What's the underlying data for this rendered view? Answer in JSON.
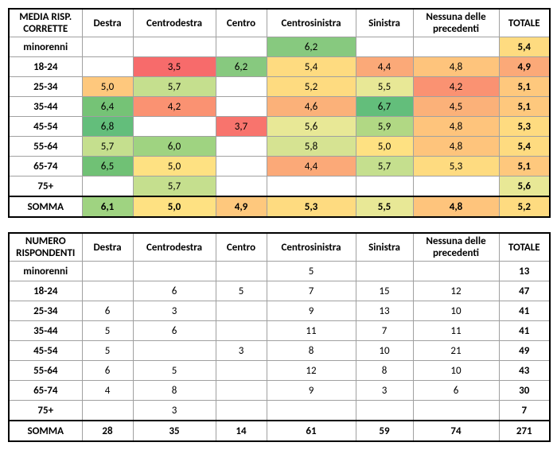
{
  "columns": [
    "Destra",
    "Centrodestra",
    "Centro",
    "Centrosinistra",
    "Sinistra",
    "Nessuna delle precedenti",
    "TOTALE"
  ],
  "table1": {
    "corner": "MEDIA RISP. CORRETTE",
    "rows": [
      {
        "label": "minorenni",
        "cells": [
          {
            "v": "",
            "bg": "#ffffff"
          },
          {
            "v": "",
            "bg": "#ffffff"
          },
          {
            "v": "",
            "bg": "#ffffff"
          },
          {
            "v": "6,2",
            "bg": "#87c97f"
          },
          {
            "v": "",
            "bg": "#ffffff"
          },
          {
            "v": "",
            "bg": "#ffffff"
          },
          {
            "v": "5,4",
            "bg": "#fedb80"
          }
        ]
      },
      {
        "label": "18-24",
        "cells": [
          {
            "v": "",
            "bg": "#ffffff"
          },
          {
            "v": "3,5",
            "bg": "#f76b6b"
          },
          {
            "v": "6,2",
            "bg": "#87c97f"
          },
          {
            "v": "5,4",
            "bg": "#fedb80"
          },
          {
            "v": "4,4",
            "bg": "#fba978"
          },
          {
            "v": "4,8",
            "bg": "#fec47c"
          },
          {
            "v": "4,9",
            "bg": "#fba978"
          }
        ]
      },
      {
        "label": "25-34",
        "cells": [
          {
            "v": "5,0",
            "bg": "#fec87d"
          },
          {
            "v": "5,7",
            "bg": "#c5df8e"
          },
          {
            "v": "",
            "bg": "#ffffff"
          },
          {
            "v": "5,2",
            "bg": "#fedb80"
          },
          {
            "v": "5,5",
            "bg": "#e8e896"
          },
          {
            "v": "4,2",
            "bg": "#fa9272"
          },
          {
            "v": "5,1",
            "bg": "#fec87d"
          }
        ]
      },
      {
        "label": "35-44",
        "cells": [
          {
            "v": "6,4",
            "bg": "#75c376"
          },
          {
            "v": "4,2",
            "bg": "#fa9272"
          },
          {
            "v": "",
            "bg": "#ffffff"
          },
          {
            "v": "4,6",
            "bg": "#fbb179"
          },
          {
            "v": "6,7",
            "bg": "#63be7b"
          },
          {
            "v": "4,5",
            "bg": "#fbb179"
          },
          {
            "v": "5,1",
            "bg": "#fec87d"
          }
        ]
      },
      {
        "label": "45-54",
        "cells": [
          {
            "v": "6,8",
            "bg": "#63be7b"
          },
          {
            "v": "",
            "bg": "#ffffff"
          },
          {
            "v": "3,7",
            "bg": "#f8746d"
          },
          {
            "v": "5,6",
            "bg": "#e8e896"
          },
          {
            "v": "5,9",
            "bg": "#b1d884"
          },
          {
            "v": "4,8",
            "bg": "#fec47c"
          },
          {
            "v": "5,3",
            "bg": "#fedb80"
          }
        ]
      },
      {
        "label": "55-64",
        "cells": [
          {
            "v": "5,7",
            "bg": "#c5df8e"
          },
          {
            "v": "6,0",
            "bg": "#9fd381"
          },
          {
            "v": "",
            "bg": "#ffffff"
          },
          {
            "v": "5,8",
            "bg": "#d6e392"
          },
          {
            "v": "5,0",
            "bg": "#fee182"
          },
          {
            "v": "4,8",
            "bg": "#fec47c"
          },
          {
            "v": "5,4",
            "bg": "#fedb80"
          }
        ]
      },
      {
        "label": "65-74",
        "cells": [
          {
            "v": "6,5",
            "bg": "#70c175"
          },
          {
            "v": "5,0",
            "bg": "#fee182"
          },
          {
            "v": "",
            "bg": "#ffffff"
          },
          {
            "v": "4,4",
            "bg": "#fba978"
          },
          {
            "v": "5,7",
            "bg": "#c5df8e"
          },
          {
            "v": "5,3",
            "bg": "#fedb80"
          },
          {
            "v": "5,1",
            "bg": "#fec87d"
          }
        ]
      },
      {
        "label": "75+",
        "cells": [
          {
            "v": "",
            "bg": "#ffffff"
          },
          {
            "v": "5,7",
            "bg": "#c5df8e"
          },
          {
            "v": "",
            "bg": "#ffffff"
          },
          {
            "v": "",
            "bg": "#ffffff"
          },
          {
            "v": "",
            "bg": "#ffffff"
          },
          {
            "v": "",
            "bg": "#ffffff"
          },
          {
            "v": "5,6",
            "bg": "#e8e896"
          }
        ]
      }
    ],
    "summary": {
      "label": "SOMMA",
      "cells": [
        {
          "v": "6,1",
          "bg": "#9fd381"
        },
        {
          "v": "5,0",
          "bg": "#fee182"
        },
        {
          "v": "4,9",
          "bg": "#fec87d"
        },
        {
          "v": "5,3",
          "bg": "#fedb80"
        },
        {
          "v": "5,5",
          "bg": "#e8e896"
        },
        {
          "v": "4,8",
          "bg": "#fec47c"
        },
        {
          "v": "5,2",
          "bg": "#fedb80"
        }
      ]
    }
  },
  "table2": {
    "corner": "NUMERO RISPONDENTI",
    "rows": [
      {
        "label": "minorenni",
        "cells": [
          {
            "v": ""
          },
          {
            "v": ""
          },
          {
            "v": ""
          },
          {
            "v": "5"
          },
          {
            "v": ""
          },
          {
            "v": ""
          },
          {
            "v": "13"
          }
        ]
      },
      {
        "label": "18-24",
        "cells": [
          {
            "v": ""
          },
          {
            "v": "6"
          },
          {
            "v": "5"
          },
          {
            "v": "7"
          },
          {
            "v": "15"
          },
          {
            "v": "12"
          },
          {
            "v": "47"
          }
        ]
      },
      {
        "label": "25-34",
        "cells": [
          {
            "v": "6"
          },
          {
            "v": "3"
          },
          {
            "v": ""
          },
          {
            "v": "9"
          },
          {
            "v": "13"
          },
          {
            "v": "10"
          },
          {
            "v": "41"
          }
        ]
      },
      {
        "label": "35-44",
        "cells": [
          {
            "v": "5"
          },
          {
            "v": "6"
          },
          {
            "v": ""
          },
          {
            "v": "11"
          },
          {
            "v": "7"
          },
          {
            "v": "11"
          },
          {
            "v": "41"
          }
        ]
      },
      {
        "label": "45-54",
        "cells": [
          {
            "v": "5"
          },
          {
            "v": ""
          },
          {
            "v": "3"
          },
          {
            "v": "8"
          },
          {
            "v": "10"
          },
          {
            "v": "21"
          },
          {
            "v": "49"
          }
        ]
      },
      {
        "label": "55-64",
        "cells": [
          {
            "v": "6"
          },
          {
            "v": "5"
          },
          {
            "v": ""
          },
          {
            "v": "12"
          },
          {
            "v": "8"
          },
          {
            "v": "10"
          },
          {
            "v": "43"
          }
        ]
      },
      {
        "label": "65-74",
        "cells": [
          {
            "v": "4"
          },
          {
            "v": "8"
          },
          {
            "v": ""
          },
          {
            "v": "9"
          },
          {
            "v": "3"
          },
          {
            "v": "6"
          },
          {
            "v": "30"
          }
        ]
      },
      {
        "label": "75+",
        "cells": [
          {
            "v": ""
          },
          {
            "v": "3"
          },
          {
            "v": ""
          },
          {
            "v": ""
          },
          {
            "v": ""
          },
          {
            "v": ""
          },
          {
            "v": "7"
          }
        ]
      }
    ],
    "summary": {
      "label": "SOMMA",
      "cells": [
        {
          "v": "28"
        },
        {
          "v": "35"
        },
        {
          "v": "14"
        },
        {
          "v": "61"
        },
        {
          "v": "59"
        },
        {
          "v": "74"
        },
        {
          "v": "271"
        }
      ]
    }
  }
}
